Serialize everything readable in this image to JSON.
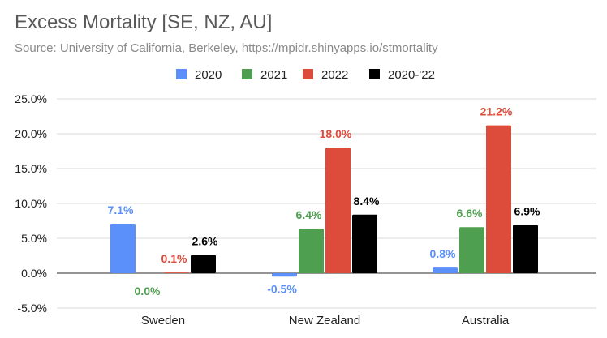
{
  "chart_data": {
    "type": "bar",
    "title": "Excess Mortality [SE, NZ, AU]",
    "subtitle": "Source: University of California, Berkeley, https://mpidr.shinyapps.io/stmortality",
    "categories": [
      "Sweden",
      "New Zealand",
      "Australia"
    ],
    "series": [
      {
        "name": "2020",
        "color": "#5b8ff9",
        "values": [
          7.1,
          -0.5,
          0.8
        ],
        "labels": [
          "7.1%",
          "-0.5%",
          "0.8%"
        ]
      },
      {
        "name": "2021",
        "color": "#4e9f50",
        "values": [
          0.0,
          6.4,
          6.6
        ],
        "labels": [
          "0.0%",
          "6.4%",
          "6.6%"
        ]
      },
      {
        "name": "2022",
        "color": "#dd4b3a",
        "values": [
          0.1,
          18.0,
          21.2
        ],
        "labels": [
          "0.1%",
          "18.0%",
          "21.2%"
        ]
      },
      {
        "name": "2020-'22",
        "color": "#000000",
        "values": [
          2.6,
          8.4,
          6.9
        ],
        "labels": [
          "2.6%",
          "8.4%",
          "6.9%"
        ]
      }
    ],
    "y_ticks": [
      "25.0%",
      "20.0%",
      "15.0%",
      "10.0%",
      "5.0%",
      "0.0%",
      "-5.0%"
    ],
    "ylim": [
      -5,
      25
    ],
    "legend_position": "top",
    "grid": true
  }
}
